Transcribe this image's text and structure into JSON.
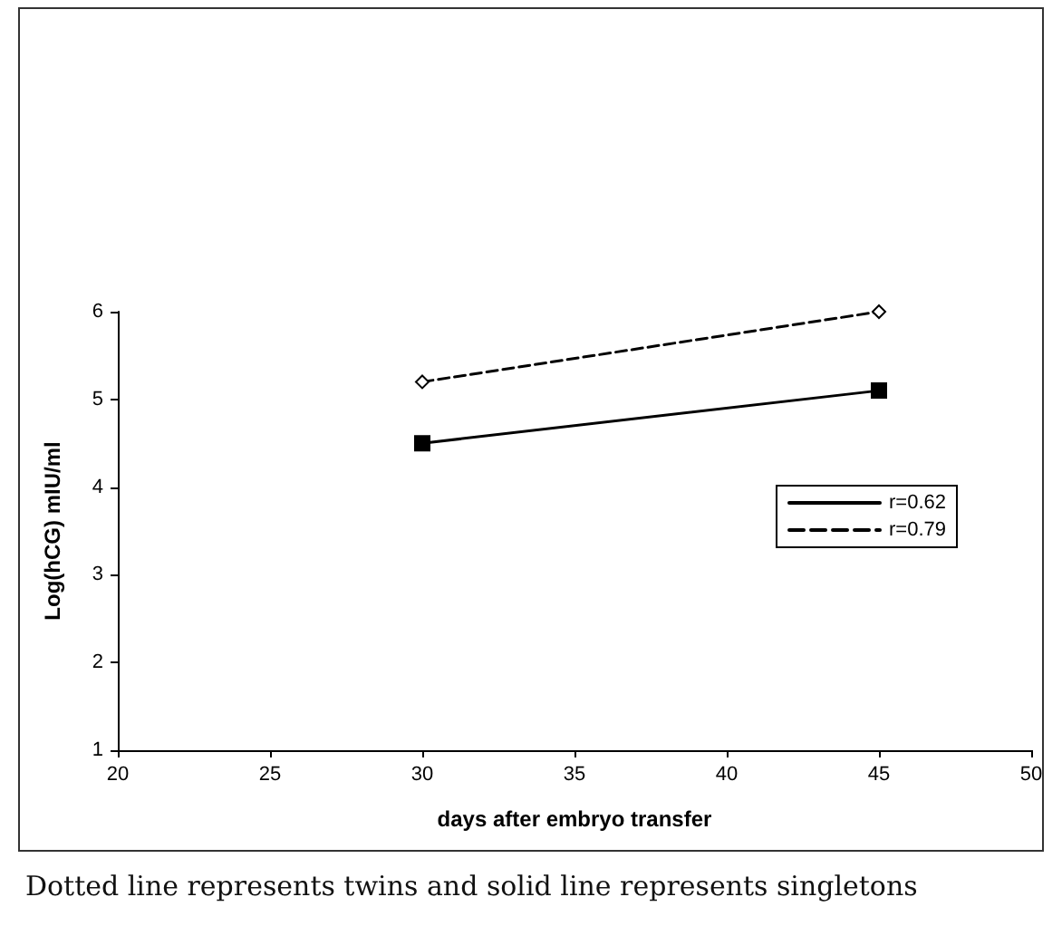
{
  "chart_data": {
    "type": "line",
    "xlabel": "days after embryo transfer",
    "ylabel": "Log(hCG) mIU/ml",
    "x": [
      30,
      45
    ],
    "series": [
      {
        "name": "r=0.62",
        "color": "#000000",
        "values": [
          4.5,
          5.1
        ],
        "line_style": "solid",
        "marker": "square"
      },
      {
        "name": "r=0.79",
        "color": "#000000",
        "values": [
          5.2,
          6.0
        ],
        "line_style": "dashed",
        "marker": "diamond"
      }
    ],
    "xlim": [
      20,
      50
    ],
    "xticks": [
      20,
      25,
      30,
      35,
      40,
      45,
      50
    ],
    "ylim": [
      1,
      6
    ],
    "yticks": [
      1,
      2,
      3,
      4,
      5,
      6
    ],
    "grid": false,
    "legend": "right",
    "annotations": [
      "Dotted line represents twins and solid line represents singletons"
    ]
  }
}
